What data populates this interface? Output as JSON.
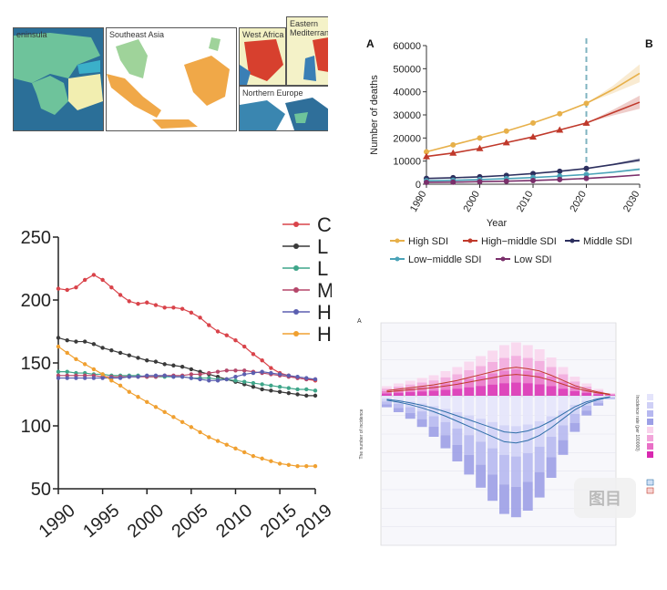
{
  "maps": {
    "panels": [
      {
        "label": "eninsula"
      },
      {
        "label": "Southeast Asia"
      },
      {
        "label": "West Africa"
      },
      {
        "label": "Eastern Mediterrane"
      },
      {
        "label": "Northern Europe"
      }
    ]
  },
  "chart_b": {
    "panel_letter_a": "A",
    "panel_letter_b": "B",
    "ylabel": "Number of deaths",
    "xlabel": "Year",
    "forecast_line_x": 2020,
    "colors": {
      "High SDI": "#e7b04a",
      "High−middle SDI": "#c0392b",
      "Middle SDI": "#2c2f5e",
      "Low−middle SDI": "#4aa3b8",
      "Low SDI": "#7a2f6b"
    }
  },
  "chart_c": {
    "legend_letters": [
      "C",
      "L",
      "L",
      "M",
      "H",
      "H"
    ],
    "colors": [
      "#d9434a",
      "#3a3a3a",
      "#3fa68a",
      "#b5476a",
      "#5b5fb0",
      "#f0a030"
    ]
  },
  "chart_d": {
    "panel_letter": "A",
    "ylabel_left": "The number of incidence",
    "ylabel_right": "Incidence rate (per 100000)",
    "watermark": "图目"
  },
  "chart_data": [
    {
      "type": "line",
      "title": "",
      "xlabel": "Year",
      "ylabel": "Number of deaths",
      "xlim": [
        1990,
        2030
      ],
      "ylim": [
        0,
        60000
      ],
      "xticks": [
        1990,
        2000,
        2010,
        2020,
        2030
      ],
      "yticks": [
        0,
        10000,
        20000,
        30000,
        40000,
        50000,
        60000
      ],
      "legend_position": "bottom",
      "series": [
        {
          "name": "High SDI",
          "x": [
            1990,
            1995,
            2000,
            2005,
            2010,
            2015,
            2020,
            2025,
            2030
          ],
          "values": [
            14000,
            17000,
            20000,
            23000,
            26500,
            30500,
            35000,
            41000,
            48000
          ]
        },
        {
          "name": "High−middle SDI",
          "x": [
            1990,
            1995,
            2000,
            2005,
            2010,
            2015,
            2020,
            2025,
            2030
          ],
          "values": [
            12000,
            13500,
            15500,
            18000,
            20500,
            23500,
            26500,
            31000,
            35500
          ]
        },
        {
          "name": "Middle SDI",
          "x": [
            1990,
            1995,
            2000,
            2005,
            2010,
            2015,
            2020,
            2025,
            2030
          ],
          "values": [
            2500,
            2800,
            3200,
            3800,
            4600,
            5600,
            6800,
            8500,
            10500
          ]
        },
        {
          "name": "Low−middle SDI",
          "x": [
            1990,
            1995,
            2000,
            2005,
            2010,
            2015,
            2020,
            2025,
            2030
          ],
          "values": [
            1500,
            1700,
            2000,
            2400,
            2900,
            3500,
            4200,
            5200,
            6500
          ]
        },
        {
          "name": "Low SDI",
          "x": [
            1990,
            1995,
            2000,
            2005,
            2010,
            2015,
            2020,
            2025,
            2030
          ],
          "values": [
            800,
            900,
            1100,
            1300,
            1600,
            2000,
            2500,
            3200,
            4000
          ]
        }
      ]
    },
    {
      "type": "line",
      "xlim": [
        1990,
        2019
      ],
      "ylim": [
        50,
        250
      ],
      "xticks": [
        1990,
        1995,
        2000,
        2005,
        2010,
        2015,
        2019
      ],
      "yticks": [
        50,
        100,
        150,
        200,
        250
      ],
      "x": [
        1990,
        1991,
        1992,
        1993,
        1994,
        1995,
        1996,
        1997,
        1998,
        1999,
        2000,
        2001,
        2002,
        2003,
        2004,
        2005,
        2006,
        2007,
        2008,
        2009,
        2010,
        2011,
        2012,
        2013,
        2014,
        2015,
        2016,
        2017,
        2018,
        2019
      ],
      "series": [
        {
          "values": [
            209,
            208,
            210,
            216,
            220,
            216,
            210,
            204,
            199,
            197,
            198,
            196,
            194,
            194,
            193,
            190,
            186,
            180,
            175,
            172,
            168,
            163,
            157,
            152,
            146,
            142,
            140,
            138,
            137,
            136
          ]
        },
        {
          "values": [
            170,
            168,
            167,
            167,
            165,
            162,
            160,
            158,
            156,
            154,
            152,
            151,
            149,
            148,
            147,
            145,
            143,
            141,
            139,
            137,
            135,
            133,
            131,
            129,
            128,
            127,
            126,
            125,
            124,
            124
          ]
        },
        {
          "values": [
            143,
            143,
            142,
            142,
            141,
            141,
            140,
            140,
            140,
            140,
            139,
            139,
            139,
            139,
            139,
            138,
            138,
            138,
            137,
            137,
            136,
            135,
            134,
            133,
            132,
            131,
            130,
            129,
            129,
            128
          ]
        },
        {
          "values": [
            140,
            140,
            140,
            140,
            140,
            139,
            139,
            139,
            139,
            139,
            139,
            139,
            140,
            140,
            140,
            141,
            141,
            142,
            143,
            144,
            144,
            144,
            143,
            142,
            141,
            140,
            139,
            138,
            137,
            137
          ]
        },
        {
          "values": [
            138,
            138,
            138,
            138,
            138,
            138,
            138,
            138,
            139,
            139,
            140,
            140,
            140,
            139,
            139,
            138,
            137,
            136,
            136,
            137,
            139,
            141,
            142,
            143,
            142,
            141,
            140,
            139,
            138,
            137
          ]
        },
        {
          "values": [
            163,
            158,
            153,
            149,
            145,
            141,
            136,
            132,
            127,
            123,
            119,
            115,
            111,
            107,
            103,
            99,
            95,
            91,
            88,
            85,
            82,
            79,
            76,
            74,
            72,
            70,
            69,
            68,
            68,
            68
          ]
        }
      ]
    },
    {
      "type": "bar",
      "bins": 20,
      "upper_values": [
        0.35,
        0.45,
        0.55,
        0.65,
        0.75,
        0.9,
        1.05,
        1.25,
        1.45,
        1.65,
        1.85,
        1.95,
        1.85,
        1.7,
        1.4,
        1.05,
        0.7,
        0.45,
        0.25,
        0.1
      ],
      "lower_values": [
        0.35,
        0.5,
        0.7,
        0.95,
        1.25,
        1.6,
        2.0,
        2.4,
        2.8,
        3.2,
        3.6,
        3.7,
        3.5,
        3.1,
        2.5,
        1.8,
        1.1,
        0.6,
        0.3,
        0.1
      ]
    }
  ]
}
